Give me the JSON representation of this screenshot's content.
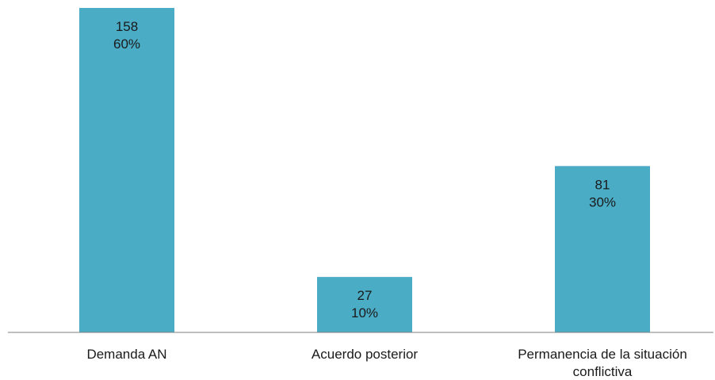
{
  "chart_data": {
    "type": "bar",
    "categories": [
      [
        "Demanda AN"
      ],
      [
        "Acuerdo posterior"
      ],
      [
        "Permanencia de la situación",
        "conflictiva"
      ]
    ],
    "values": [
      158,
      27,
      81
    ],
    "data_labels": [
      [
        "158",
        "60%"
      ],
      [
        "27",
        "10%"
      ],
      [
        "81",
        "30%"
      ]
    ],
    "ylim": [
      0,
      158
    ],
    "grid": false,
    "legend": "none",
    "colors": {
      "bar": "#4bacc6",
      "axis": "#7f7f7f",
      "text": "#1a1a1a"
    }
  }
}
